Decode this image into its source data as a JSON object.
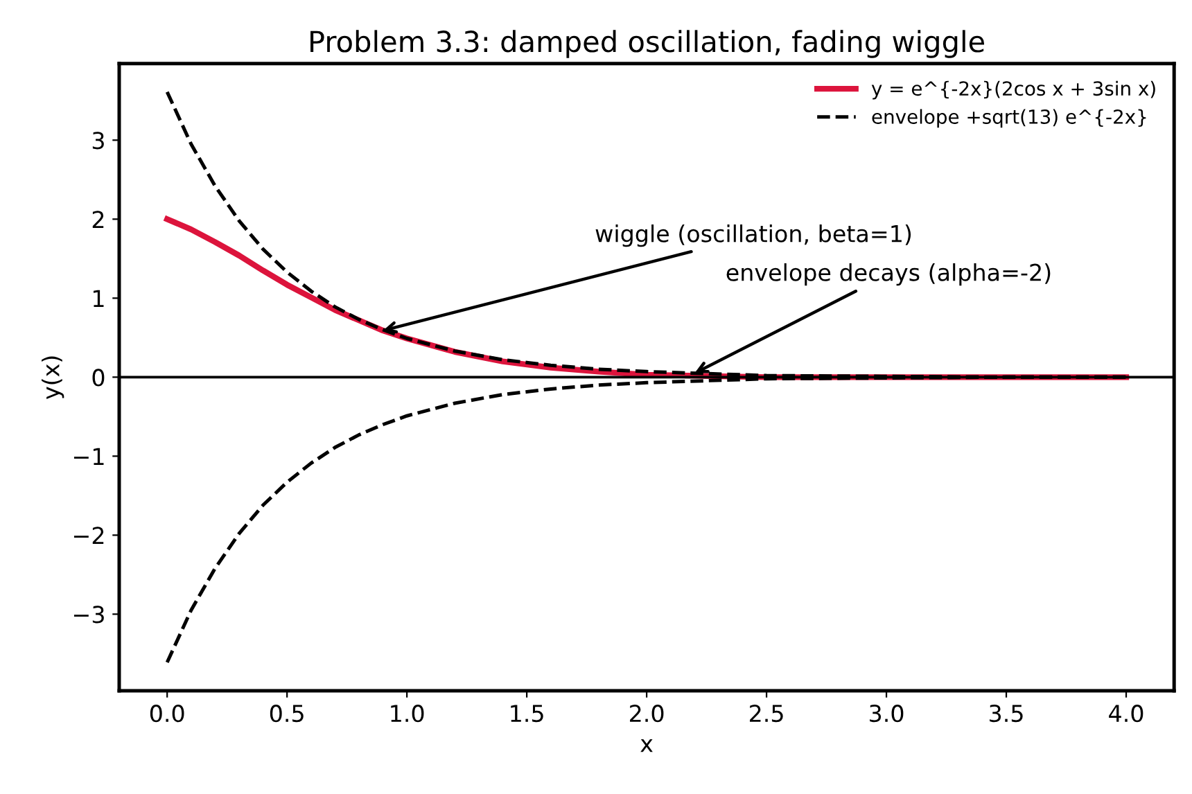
{
  "chart_data": {
    "type": "line",
    "title": "Problem 3.3: damped oscillation, fading wiggle",
    "xlabel": "x",
    "ylabel": "y(x)",
    "x": [
      0,
      0.1,
      0.2,
      0.3,
      0.4,
      0.5,
      0.6,
      0.7,
      0.8,
      0.9,
      1.0,
      1.2,
      1.4,
      1.6,
      1.8,
      2.0,
      2.5,
      3.0,
      3.5,
      4.0
    ],
    "series": [
      {
        "name": "y = e^{-2x}(2cos x + 3sin x)",
        "color": "#dc143c",
        "line_style": "solid",
        "values": [
          2.0,
          1.87,
          1.71,
          1.54,
          1.35,
          1.17,
          1.01,
          0.85,
          0.72,
          0.59,
          0.49,
          0.32,
          0.2,
          0.12,
          0.07,
          0.03,
          0.0,
          0.0,
          0.0,
          0.0
        ]
      },
      {
        "name": "envelope +sqrt(13) e^{-2x}",
        "color": "#000000",
        "line_style": "dashed",
        "values": [
          3.61,
          2.95,
          2.42,
          1.98,
          1.62,
          1.33,
          1.09,
          0.89,
          0.73,
          0.6,
          0.49,
          0.33,
          0.22,
          0.15,
          0.1,
          0.07,
          0.02,
          0.01,
          0.0,
          0.0
        ]
      },
      {
        "color": "#000000",
        "line_style": "dashed",
        "values": [
          -3.61,
          -2.95,
          -2.42,
          -1.98,
          -1.62,
          -1.33,
          -1.09,
          -0.89,
          -0.73,
          -0.6,
          -0.49,
          -0.33,
          -0.22,
          -0.15,
          -0.1,
          -0.07,
          -0.02,
          -0.01,
          0.0,
          0.0
        ]
      }
    ],
    "xlim": [
      -0.2,
      4.2
    ],
    "ylim": [
      -3.97,
      3.97
    ],
    "xticks": [
      {
        "value": 0,
        "label": "0.0"
      },
      0.5,
      {
        "value": 1,
        "label": "1.0"
      },
      1.5,
      {
        "value": 2,
        "label": "2.0"
      },
      2.5,
      {
        "value": 3,
        "label": "3.0"
      },
      3.5,
      {
        "value": 4,
        "label": "4.0"
      }
    ],
    "yticks": [
      {
        "value": -3,
        "label": "−3"
      },
      {
        "value": -2,
        "label": "−2"
      },
      {
        "value": -1,
        "label": "−1"
      },
      0,
      1,
      2,
      3
    ],
    "ref_lines": [
      {
        "axis": "y",
        "value": 0,
        "color": "#000000",
        "line_style": "solid"
      }
    ],
    "annotations": [
      {
        "text": "wiggle (oscillation, beta=1)",
        "x": 0.9,
        "y": 0.59
      },
      {
        "text": "envelope decays (alpha=-2)",
        "x": 2.2,
        "y": 0.05
      }
    ],
    "legend": "top right",
    "grid": false
  }
}
